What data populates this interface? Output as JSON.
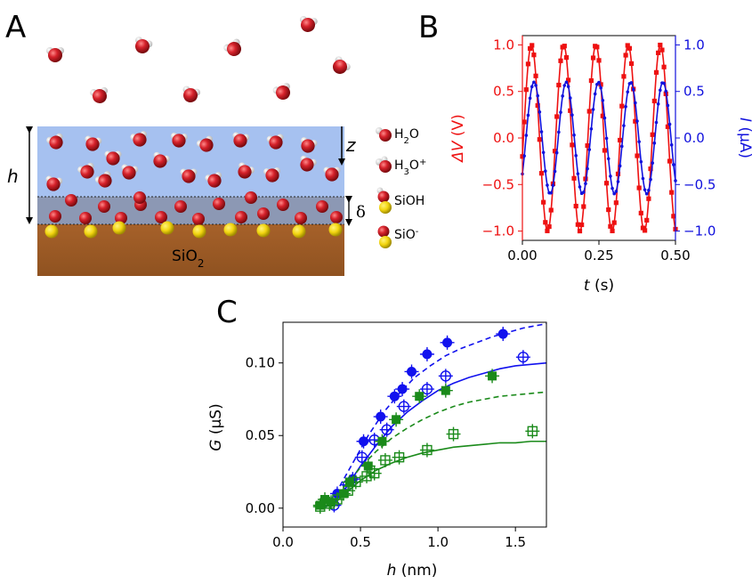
{
  "panel_a": {
    "letter": "A",
    "h_label": "h",
    "z_label": "z",
    "delta_label": "δ",
    "substrate_label": "SiO",
    "substrate_sub": "2",
    "legend": [
      {
        "name": "H",
        "sub": "2",
        "rest": "O",
        "sup": ""
      },
      {
        "name": "H",
        "sub": "3",
        "rest": "O",
        "sup": "+"
      },
      {
        "name": "SiOH",
        "sub": "",
        "rest": "",
        "sup": ""
      },
      {
        "name": "SiO",
        "sub": "",
        "rest": "",
        "sup": "-"
      }
    ],
    "colors": {
      "water": "#a6c1f0",
      "stern": "#8c98b4",
      "substrate": "#a15c27",
      "oxygen": "#d6222b",
      "silicon": "#f2d510"
    }
  },
  "chart_data": [
    {
      "panel": "B",
      "type": "line",
      "xlabel_var": "t",
      "xlabel_unit": " (s)",
      "ylabel_left_var": "ΔV",
      "ylabel_left_unit": " (V)",
      "ylabel_right_var": "I",
      "ylabel_right_unit": " (μA)",
      "xlim": [
        0,
        0.5
      ],
      "ylim_left": [
        -1.1,
        1.1
      ],
      "ylim_right": [
        -1.1,
        1.1
      ],
      "xticks": [
        "0.00",
        "0.25",
        "0.50"
      ],
      "xtick_values": [
        0,
        0.25,
        0.5
      ],
      "yticks_left": [
        "1.0",
        "0.5",
        "0.0",
        "−0.5",
        "−1.0"
      ],
      "yticks_right": [
        "1.0",
        "0.5",
        "0.0",
        "−0.5",
        "−1.0"
      ],
      "ytick_values": [
        1.0,
        0.5,
        0.0,
        -0.5,
        -1.0
      ],
      "series": [
        {
          "axis": "left",
          "color": "#ee1111",
          "marker": "square",
          "amplitude": 1.0,
          "frequency_hz": 9.5,
          "phase_rad": -0.2
        },
        {
          "axis": "right",
          "color": "#1111dd",
          "marker": "dot",
          "amplitude": 0.6,
          "frequency_hz": 9.5,
          "phase_rad": -0.7
        }
      ]
    },
    {
      "panel": "C",
      "type": "scatter",
      "xlabel_var": "h",
      "xlabel_unit": " (nm)",
      "ylabel_var": "G",
      "ylabel_unit": " (μS)",
      "xlim": [
        0.0,
        1.7
      ],
      "ylim": [
        -0.013,
        0.128
      ],
      "xticks": [
        "0.0",
        "0.5",
        "1.0",
        "1.5"
      ],
      "xtick_values": [
        0.0,
        0.5,
        1.0,
        1.5
      ],
      "yticks": [
        "0.00",
        "0.05",
        "0.10"
      ],
      "ytick_values": [
        0.0,
        0.05,
        0.1
      ],
      "series": [
        {
          "color": "#1111ee",
          "marker": "filled-circle",
          "fit": "dashed",
          "x": [
            0.35,
            0.45,
            0.52,
            0.63,
            0.72,
            0.77,
            0.83,
            0.93,
            1.06,
            1.42
          ],
          "y": [
            0.01,
            0.02,
            0.046,
            0.063,
            0.077,
            0.082,
            0.094,
            0.106,
            0.114,
            0.12
          ],
          "fit_x": [
            0.27,
            0.35,
            0.45,
            0.55,
            0.65,
            0.75,
            0.85,
            0.95,
            1.05,
            1.15,
            1.25,
            1.35,
            1.45,
            1.55,
            1.7
          ],
          "fit_y": [
            0.0,
            0.012,
            0.031,
            0.05,
            0.066,
            0.079,
            0.09,
            0.098,
            0.105,
            0.11,
            0.114,
            0.118,
            0.121,
            0.124,
            0.127
          ]
        },
        {
          "color": "#1111ee",
          "marker": "open-circle-cross",
          "fit": "solid",
          "x": [
            0.33,
            0.42,
            0.51,
            0.59,
            0.67,
            0.78,
            0.93,
            1.05,
            1.55
          ],
          "y": [
            0.002,
            0.016,
            0.035,
            0.047,
            0.054,
            0.07,
            0.082,
            0.091,
            0.104
          ],
          "fit_x": [
            0.3,
            0.4,
            0.5,
            0.6,
            0.7,
            0.8,
            0.9,
            1.0,
            1.1,
            1.2,
            1.3,
            1.4,
            1.5,
            1.6,
            1.7
          ],
          "fit_y": [
            0.0,
            0.013,
            0.029,
            0.043,
            0.056,
            0.066,
            0.074,
            0.081,
            0.086,
            0.09,
            0.093,
            0.096,
            0.098,
            0.099,
            0.1
          ]
        },
        {
          "color": "#1a8a1a",
          "marker": "filled-square",
          "fit": "dashed",
          "x": [
            0.24,
            0.27,
            0.31,
            0.39,
            0.43,
            0.55,
            0.64,
            0.73,
            0.88,
            1.05,
            1.35
          ],
          "y": [
            0.002,
            0.006,
            0.004,
            0.01,
            0.018,
            0.029,
            0.046,
            0.061,
            0.077,
            0.081,
            0.091
          ],
          "fit_x": [
            0.3,
            0.4,
            0.5,
            0.6,
            0.7,
            0.8,
            0.9,
            1.0,
            1.1,
            1.2,
            1.3,
            1.4,
            1.5,
            1.6,
            1.7
          ],
          "fit_y": [
            0.0,
            0.015,
            0.028,
            0.039,
            0.048,
            0.055,
            0.061,
            0.066,
            0.07,
            0.073,
            0.075,
            0.077,
            0.078,
            0.079,
            0.08
          ]
        },
        {
          "color": "#1a8a1a",
          "marker": "open-square-cross",
          "fit": "solid",
          "x": [
            0.24,
            0.3,
            0.35,
            0.42,
            0.47,
            0.54,
            0.59,
            0.66,
            0.75,
            0.93,
            1.1,
            1.61
          ],
          "y": [
            0.001,
            0.003,
            0.006,
            0.012,
            0.018,
            0.022,
            0.024,
            0.033,
            0.035,
            0.04,
            0.051,
            0.053
          ],
          "fit_x": [
            0.3,
            0.4,
            0.5,
            0.6,
            0.7,
            0.8,
            0.9,
            1.0,
            1.1,
            1.2,
            1.3,
            1.4,
            1.5,
            1.6,
            1.7
          ],
          "fit_y": [
            0.0,
            0.01,
            0.019,
            0.026,
            0.031,
            0.035,
            0.038,
            0.04,
            0.042,
            0.043,
            0.044,
            0.045,
            0.045,
            0.046,
            0.046
          ]
        }
      ]
    }
  ]
}
